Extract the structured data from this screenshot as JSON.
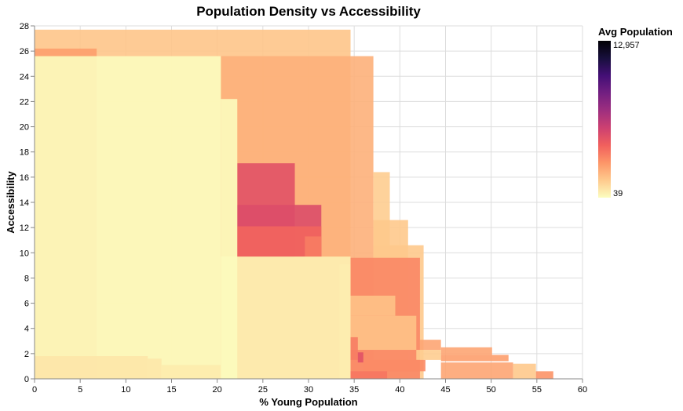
{
  "chart_data": {
    "type": "heatmap",
    "title": "Population Density vs Accessibility",
    "xlabel": "% Young Population",
    "ylabel": "Accessibility",
    "xlim": [
      0,
      60
    ],
    "ylim": [
      0,
      28
    ],
    "x_ticks": [
      0,
      5,
      10,
      15,
      20,
      25,
      30,
      35,
      40,
      45,
      50,
      55,
      60
    ],
    "y_ticks": [
      0,
      2,
      4,
      6,
      8,
      10,
      12,
      14,
      16,
      18,
      20,
      22,
      24,
      26,
      28
    ],
    "grid": true,
    "legend": {
      "title": "Avg Population",
      "position": "right",
      "max_label": "12,957",
      "min_label": "39",
      "min": 39,
      "max": 12957
    },
    "color_scale": [
      "#fcfdbf",
      "#feca8d",
      "#fd9668",
      "#f1605d",
      "#cd4071",
      "#9e2f7f",
      "#721f81",
      "#440f76",
      "#180f3d",
      "#000004"
    ],
    "rects": [
      {
        "x0": 0,
        "x1": 34.6,
        "y0": 0,
        "y1": 27.7,
        "value": 1600
      },
      {
        "x0": 0,
        "x1": 6.8,
        "y0": 0,
        "y1": 26.2,
        "value": 2700
      },
      {
        "x0": 20.4,
        "x1": 37.1,
        "y0": 0,
        "y1": 25.6,
        "value": 2200
      },
      {
        "x0": 37.1,
        "x1": 38.9,
        "y0": 0,
        "y1": 16.4,
        "value": 1400
      },
      {
        "x0": 37.1,
        "x1": 40.9,
        "y0": 0,
        "y1": 12.6,
        "value": 1500
      },
      {
        "x0": 37.1,
        "x1": 42.6,
        "y0": 0,
        "y1": 10.6,
        "value": 1500
      },
      {
        "x0": 22.2,
        "x1": 28.5,
        "y0": 9.7,
        "y1": 17.1,
        "value": 5000
      },
      {
        "x0": 22.2,
        "x1": 31.4,
        "y0": 9.7,
        "y1": 13.8,
        "value": 5200
      },
      {
        "x0": 22.2,
        "x1": 31.4,
        "y0": 9.7,
        "y1": 12.1,
        "value": 4200
      },
      {
        "x0": 29.6,
        "x1": 31.4,
        "y0": 9.7,
        "y1": 11.3,
        "value": 3600
      },
      {
        "x0": 34.6,
        "x1": 42.2,
        "y0": 0,
        "y1": 9.6,
        "value": 3300
      },
      {
        "x0": 34.6,
        "x1": 39.5,
        "y0": 5.0,
        "y1": 6.6,
        "value": 1700
      },
      {
        "x0": 34.6,
        "x1": 41.8,
        "y0": 2.3,
        "y1": 5.0,
        "value": 1700
      },
      {
        "x0": 34.6,
        "x1": 35.4,
        "y0": 1.5,
        "y1": 3.3,
        "value": 3600
      },
      {
        "x0": 42.2,
        "x1": 44.5,
        "y0": 2.3,
        "y1": 3.1,
        "value": 2500
      },
      {
        "x0": 44.5,
        "x1": 50.1,
        "y0": 1.9,
        "y1": 2.5,
        "value": 2500
      },
      {
        "x0": 41.8,
        "x1": 44.5,
        "y0": 1.5,
        "y1": 2.3,
        "value": 1400
      },
      {
        "x0": 44.5,
        "x1": 51.9,
        "y0": 1.4,
        "y1": 1.9,
        "value": 2700
      },
      {
        "x0": 35.4,
        "x1": 36.0,
        "y0": 1.3,
        "y1": 2.1,
        "value": 5000
      },
      {
        "x0": 36.0,
        "x1": 42.8,
        "y0": 0.6,
        "y1": 1.5,
        "value": 3200
      },
      {
        "x0": 44.5,
        "x1": 52.4,
        "y0": 0,
        "y1": 1.3,
        "value": 2500
      },
      {
        "x0": 52.4,
        "x1": 54.9,
        "y0": 0,
        "y1": 1.2,
        "value": 1500
      },
      {
        "x0": 54.9,
        "x1": 56.8,
        "y0": 0,
        "y1": 0.6,
        "value": 3000
      },
      {
        "x0": 34.6,
        "x1": 38.6,
        "y0": 0,
        "y1": 0.6,
        "value": 3800
      },
      {
        "x0": 20.4,
        "x1": 34.6,
        "y0": 0,
        "y1": 9.7,
        "value": 400
      },
      {
        "x0": 33.4,
        "x1": 34.6,
        "y0": 0,
        "y1": 9.1,
        "value": 500
      },
      {
        "x0": 0,
        "x1": 20.4,
        "y0": 0,
        "y1": 25.6,
        "value": 60
      },
      {
        "x0": 20.4,
        "x1": 22.2,
        "y0": 0,
        "y1": 22.2,
        "value": 60
      },
      {
        "x0": 0,
        "x1": 12.4,
        "y0": 0,
        "y1": 1.8,
        "value": 700
      },
      {
        "x0": 12.4,
        "x1": 13.9,
        "y0": 0,
        "y1": 1.6,
        "value": 650
      },
      {
        "x0": 13.9,
        "x1": 20.4,
        "y0": 0,
        "y1": 1.1,
        "value": 550
      }
    ]
  }
}
